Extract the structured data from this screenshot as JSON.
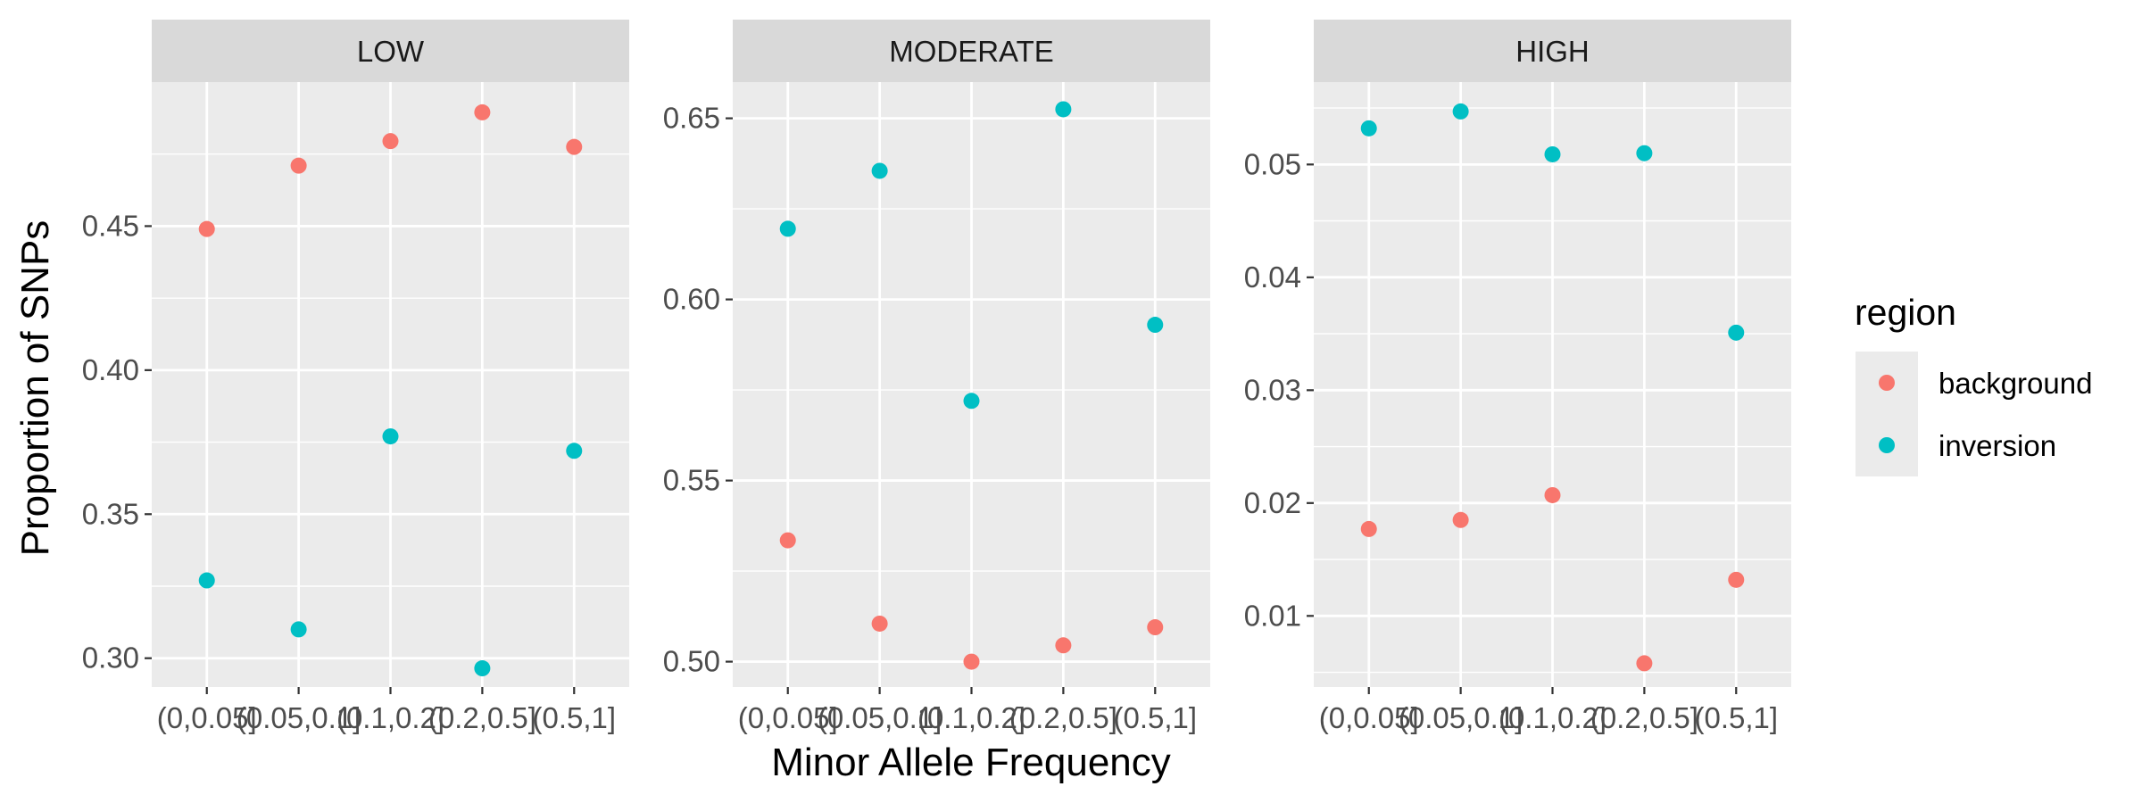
{
  "chart_data": {
    "type": "scatter",
    "xlabel": "Minor Allele Frequency",
    "ylabel": "Proportion of SNPs",
    "categories": [
      "(0,0.05]",
      "(0.05,0.1]",
      "(0.1,0.2]",
      "(0.2,0.5]",
      "(0.5,1]"
    ],
    "legend": {
      "title": "region",
      "placement": "right",
      "entries": [
        {
          "name": "background",
          "color": "#F8766D"
        },
        {
          "name": "inversion",
          "color": "#00BFC4"
        }
      ]
    },
    "grid": true,
    "panels": [
      {
        "title": "LOW",
        "ylim": [
          0.29,
          0.5
        ],
        "yticks": [
          0.3,
          0.35,
          0.4,
          0.45
        ],
        "ytick_labels": [
          "0.30",
          "0.35",
          "0.40",
          "0.45"
        ],
        "series": [
          {
            "name": "background",
            "values": [
              0.449,
              0.471,
              0.4795,
              0.4895,
              0.4775
            ]
          },
          {
            "name": "inversion",
            "values": [
              0.327,
              0.31,
              0.377,
              0.2965,
              0.372
            ]
          }
        ]
      },
      {
        "title": "MODERATE",
        "ylim": [
          0.493,
          0.66
        ],
        "yticks": [
          0.5,
          0.55,
          0.6,
          0.65
        ],
        "ytick_labels": [
          "0.50",
          "0.55",
          "0.60",
          "0.65"
        ],
        "series": [
          {
            "name": "background",
            "values": [
              0.5335,
              0.5105,
              0.5,
              0.5045,
              0.5095
            ]
          },
          {
            "name": "inversion",
            "values": [
              0.6195,
              0.6355,
              0.572,
              0.6525,
              0.593
            ]
          }
        ]
      },
      {
        "title": "HIGH",
        "ylim": [
          0.0037,
          0.0573
        ],
        "yticks": [
          0.01,
          0.02,
          0.03,
          0.04,
          0.05
        ],
        "ytick_labels": [
          "0.01",
          "0.02",
          "0.03",
          "0.04",
          "0.05"
        ],
        "series": [
          {
            "name": "background",
            "values": [
              0.0177,
              0.0185,
              0.0207,
              0.0058,
              0.0132
            ]
          },
          {
            "name": "inversion",
            "values": [
              0.0532,
              0.0547,
              0.0509,
              0.051,
              0.0351
            ]
          }
        ]
      }
    ]
  }
}
